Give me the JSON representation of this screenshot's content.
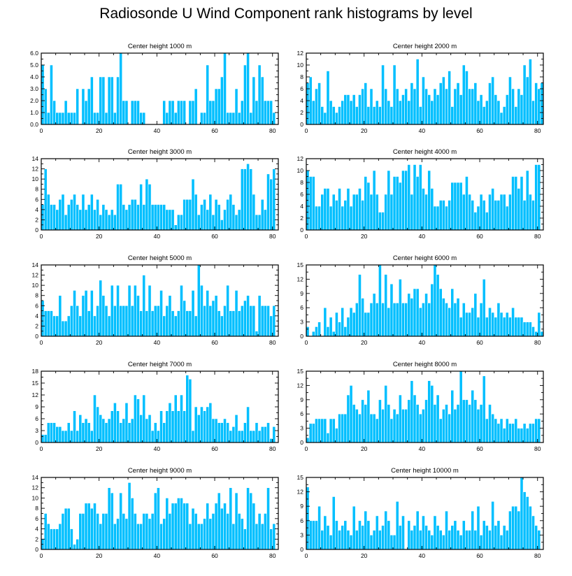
{
  "figure": {
    "title": "Radiosonde U Wind Component rank histograms by level"
  },
  "colors": {
    "bar": "#00bfff",
    "axis": "#000000",
    "background": "#ffffff"
  },
  "chart_data": [
    {
      "type": "bar",
      "title": "Center height 1000 m",
      "xlim": [
        0,
        82
      ],
      "ylim": [
        0,
        6
      ],
      "xticks": [
        0,
        20,
        40,
        60,
        80
      ],
      "yticks": [
        0,
        1,
        2,
        3,
        4,
        5,
        6
      ],
      "ytick_labels": [
        "0.0",
        "1.0",
        "2.0",
        "3.0",
        "4.0",
        "5.0",
        "6.0"
      ],
      "values": [
        5,
        3,
        1,
        5,
        2,
        1,
        1,
        1,
        2,
        1,
        1,
        1,
        3,
        0,
        3,
        2,
        3,
        4,
        1,
        1,
        4,
        4,
        1,
        4,
        4,
        1,
        4,
        6,
        2,
        2,
        0,
        2,
        2,
        2,
        1,
        1,
        0,
        0,
        0,
        0,
        0,
        0,
        2,
        1,
        2,
        2,
        1,
        2,
        2,
        2,
        0,
        2,
        2,
        3,
        0,
        1,
        1,
        5,
        2,
        2,
        3,
        3,
        4,
        6,
        1,
        1,
        1,
        3,
        1,
        2,
        5,
        6,
        1,
        4,
        2,
        5,
        4,
        2,
        2,
        2,
        1
      ]
    },
    {
      "type": "bar",
      "title": "Center height 2000 m",
      "xlim": [
        0,
        82
      ],
      "ylim": [
        0,
        12
      ],
      "xticks": [
        0,
        20,
        40,
        60,
        80
      ],
      "yticks": [
        0,
        2,
        4,
        6,
        8,
        10,
        12
      ],
      "values": [
        7,
        8,
        4,
        6,
        7,
        3,
        2,
        9,
        4,
        3,
        2,
        3,
        4,
        5,
        5,
        4,
        5,
        3,
        5,
        6,
        7,
        3,
        6,
        3,
        4,
        3,
        10,
        6,
        4,
        3,
        10,
        6,
        4,
        5,
        6,
        4,
        7,
        6,
        11,
        3,
        8,
        6,
        5,
        4,
        6,
        5,
        7,
        8,
        6,
        9,
        3,
        6,
        7,
        5,
        10,
        9,
        6,
        6,
        7,
        4,
        5,
        3,
        4,
        7,
        8,
        5,
        4,
        2,
        3,
        5,
        8,
        6,
        3,
        6,
        5,
        10,
        8,
        11,
        4,
        7,
        6,
        7
      ]
    },
    {
      "type": "bar",
      "title": "Center height 3000 m",
      "xlim": [
        0,
        82
      ],
      "ylim": [
        0,
        14
      ],
      "xticks": [
        0,
        20,
        40,
        60,
        80
      ],
      "yticks": [
        0,
        2,
        4,
        6,
        8,
        10,
        12,
        14
      ],
      "values": [
        5,
        12,
        7,
        5,
        5,
        4,
        6,
        7,
        3,
        5,
        6,
        7,
        5,
        4,
        7,
        4,
        5,
        7,
        4,
        6,
        3,
        5,
        4,
        3,
        4,
        3,
        9,
        9,
        5,
        4,
        5,
        6,
        6,
        5,
        9,
        5,
        10,
        9,
        5,
        5,
        5,
        5,
        5,
        4,
        4,
        4,
        1,
        3,
        3,
        6,
        6,
        6,
        10,
        7,
        3,
        5,
        6,
        4,
        7,
        3,
        6,
        5,
        2,
        4,
        6,
        7,
        5,
        3,
        4,
        12,
        12,
        13,
        12,
        7,
        3,
        3,
        6,
        4,
        11,
        10,
        12
      ]
    },
    {
      "type": "bar",
      "title": "Center height 4000 m",
      "xlim": [
        0,
        82
      ],
      "ylim": [
        0,
        12
      ],
      "xticks": [
        0,
        20,
        40,
        60,
        80
      ],
      "yticks": [
        0,
        2,
        4,
        6,
        8,
        10,
        12
      ],
      "values": [
        10,
        9,
        9,
        4,
        4,
        6,
        7,
        7,
        4,
        6,
        5,
        7,
        4,
        5,
        7,
        4,
        6,
        6,
        7,
        5,
        9,
        8,
        6,
        10,
        6,
        3,
        3,
        6,
        10,
        6,
        9,
        9,
        8,
        10,
        10,
        11,
        6,
        11,
        9,
        11,
        7,
        6,
        10,
        7,
        4,
        4,
        5,
        5,
        4,
        5,
        8,
        8,
        8,
        8,
        6,
        9,
        6,
        5,
        3,
        4,
        6,
        5,
        3,
        6,
        7,
        5,
        5,
        6,
        6,
        4,
        6,
        9,
        9,
        7,
        9,
        5,
        10,
        6,
        5,
        11,
        11
      ]
    },
    {
      "type": "bar",
      "title": "Center height 5000 m",
      "xlim": [
        0,
        82
      ],
      "ylim": [
        0,
        14
      ],
      "xticks": [
        0,
        20,
        40,
        60,
        80
      ],
      "yticks": [
        0,
        2,
        4,
        6,
        8,
        10,
        12,
        14
      ],
      "values": [
        7,
        5,
        5,
        5,
        4,
        4,
        8,
        3,
        3,
        4,
        6,
        9,
        6,
        4,
        8,
        9,
        5,
        9,
        4,
        6,
        11,
        8,
        6,
        4,
        10,
        6,
        10,
        6,
        6,
        6,
        10,
        6,
        10,
        8,
        5,
        12,
        5,
        10,
        5,
        6,
        6,
        9,
        4,
        6,
        8,
        5,
        4,
        5,
        10,
        7,
        5,
        5,
        9,
        4,
        14,
        10,
        6,
        9,
        6,
        7,
        8,
        5,
        4,
        6,
        10,
        5,
        5,
        9,
        5,
        6,
        7,
        8,
        6,
        6,
        1,
        8,
        6,
        6,
        6,
        4,
        6
      ]
    },
    {
      "type": "bar",
      "title": "Center height 6000 m",
      "xlim": [
        0,
        82
      ],
      "ylim": [
        0,
        15
      ],
      "xticks": [
        0,
        20,
        40,
        60,
        80
      ],
      "yticks": [
        0,
        3,
        6,
        9,
        12,
        15
      ],
      "values": [
        2,
        0,
        1,
        2,
        3,
        0,
        6,
        2,
        4,
        1,
        5,
        3,
        6,
        2,
        4,
        6,
        5,
        7,
        13,
        8,
        5,
        5,
        7,
        9,
        7,
        15,
        7,
        13,
        6,
        11,
        7,
        7,
        12,
        7,
        7,
        9,
        8,
        10,
        10,
        6,
        7,
        9,
        7,
        11,
        15,
        13,
        10,
        8,
        7,
        6,
        10,
        7,
        8,
        4,
        7,
        5,
        5,
        6,
        9,
        4,
        7,
        12,
        4,
        6,
        5,
        4,
        7,
        5,
        4,
        5,
        4,
        6,
        4,
        4,
        4,
        3,
        3,
        3,
        2,
        1,
        5,
        1
      ]
    },
    {
      "type": "bar",
      "title": "Center height 7000 m",
      "xlim": [
        0,
        82
      ],
      "ylim": [
        0,
        18
      ],
      "xticks": [
        0,
        20,
        40,
        60,
        80
      ],
      "yticks": [
        0,
        3,
        6,
        9,
        12,
        15,
        18
      ],
      "values": [
        2,
        2,
        5,
        5,
        5,
        4,
        4,
        3,
        3,
        5,
        3,
        8,
        3,
        7,
        5,
        6,
        5,
        3,
        12,
        9,
        7,
        6,
        5,
        6,
        8,
        10,
        8,
        5,
        6,
        10,
        5,
        6,
        12,
        11,
        7,
        12,
        6,
        7,
        3,
        5,
        3,
        8,
        5,
        8,
        10,
        8,
        12,
        8,
        12,
        8,
        17,
        16,
        3,
        9,
        7,
        9,
        8,
        9,
        10,
        6,
        6,
        5,
        5,
        6,
        5,
        3,
        4,
        7,
        3,
        3,
        5,
        9,
        3,
        3,
        5,
        3,
        4,
        4,
        5,
        1,
        4
      ]
    },
    {
      "type": "bar",
      "title": "Center height 8000 m",
      "xlim": [
        0,
        82
      ],
      "ylim": [
        0,
        15
      ],
      "xticks": [
        0,
        20,
        40,
        60,
        80
      ],
      "yticks": [
        0,
        3,
        6,
        9,
        12,
        15
      ],
      "values": [
        1,
        4,
        4,
        5,
        5,
        5,
        5,
        2,
        5,
        5,
        3,
        6,
        6,
        6,
        10,
        12,
        8,
        7,
        6,
        9,
        8,
        11,
        6,
        6,
        5,
        9,
        7,
        12,
        8,
        5,
        7,
        6,
        10,
        7,
        7,
        9,
        13,
        10,
        8,
        6,
        7,
        9,
        13,
        12,
        8,
        10,
        5,
        7,
        8,
        6,
        11,
        7,
        8,
        15,
        9,
        9,
        8,
        11,
        9,
        7,
        8,
        14,
        5,
        8,
        6,
        5,
        4,
        5,
        3,
        5,
        4,
        4,
        5,
        3,
        3,
        4,
        3,
        4,
        4,
        5,
        5
      ]
    },
    {
      "type": "bar",
      "title": "Center height 9000 m",
      "xlim": [
        0,
        82
      ],
      "ylim": [
        0,
        14
      ],
      "xticks": [
        0,
        20,
        40,
        60,
        80
      ],
      "yticks": [
        0,
        2,
        4,
        6,
        8,
        10,
        12,
        14
      ],
      "values": [
        2,
        7,
        5,
        4,
        4,
        4,
        5,
        7,
        8,
        8,
        4,
        1,
        2,
        7,
        7,
        9,
        9,
        8,
        9,
        7,
        5,
        7,
        7,
        12,
        11,
        5,
        6,
        11,
        7,
        6,
        13,
        10,
        7,
        5,
        5,
        7,
        7,
        6,
        7,
        11,
        12,
        5,
        6,
        10,
        7,
        9,
        9,
        10,
        10,
        9,
        9,
        5,
        8,
        7,
        5,
        5,
        6,
        9,
        6,
        7,
        9,
        11,
        8,
        9,
        7,
        12,
        5,
        11,
        7,
        6,
        4,
        12,
        11,
        9,
        5,
        7,
        5,
        7,
        12,
        4,
        5
      ]
    },
    {
      "type": "bar",
      "title": "Center height 10000 m",
      "xlim": [
        0,
        82
      ],
      "ylim": [
        0,
        15
      ],
      "xticks": [
        0,
        20,
        40,
        60,
        80
      ],
      "yticks": [
        0,
        3,
        6,
        9,
        12,
        15
      ],
      "values": [
        13,
        6,
        6,
        6,
        9,
        4,
        7,
        5,
        3,
        11,
        6,
        4,
        5,
        6,
        4,
        3,
        9,
        4,
        6,
        5,
        8,
        6,
        3,
        4,
        7,
        4,
        5,
        8,
        6,
        3,
        3,
        10,
        5,
        7,
        0,
        6,
        4,
        5,
        8,
        4,
        7,
        5,
        4,
        3,
        7,
        5,
        4,
        3,
        8,
        4,
        5,
        6,
        4,
        3,
        6,
        4,
        4,
        8,
        4,
        9,
        3,
        6,
        5,
        4,
        10,
        5,
        6,
        3,
        5,
        4,
        8,
        9,
        9,
        8,
        15,
        12,
        11,
        9,
        7,
        5,
        4
      ]
    }
  ]
}
